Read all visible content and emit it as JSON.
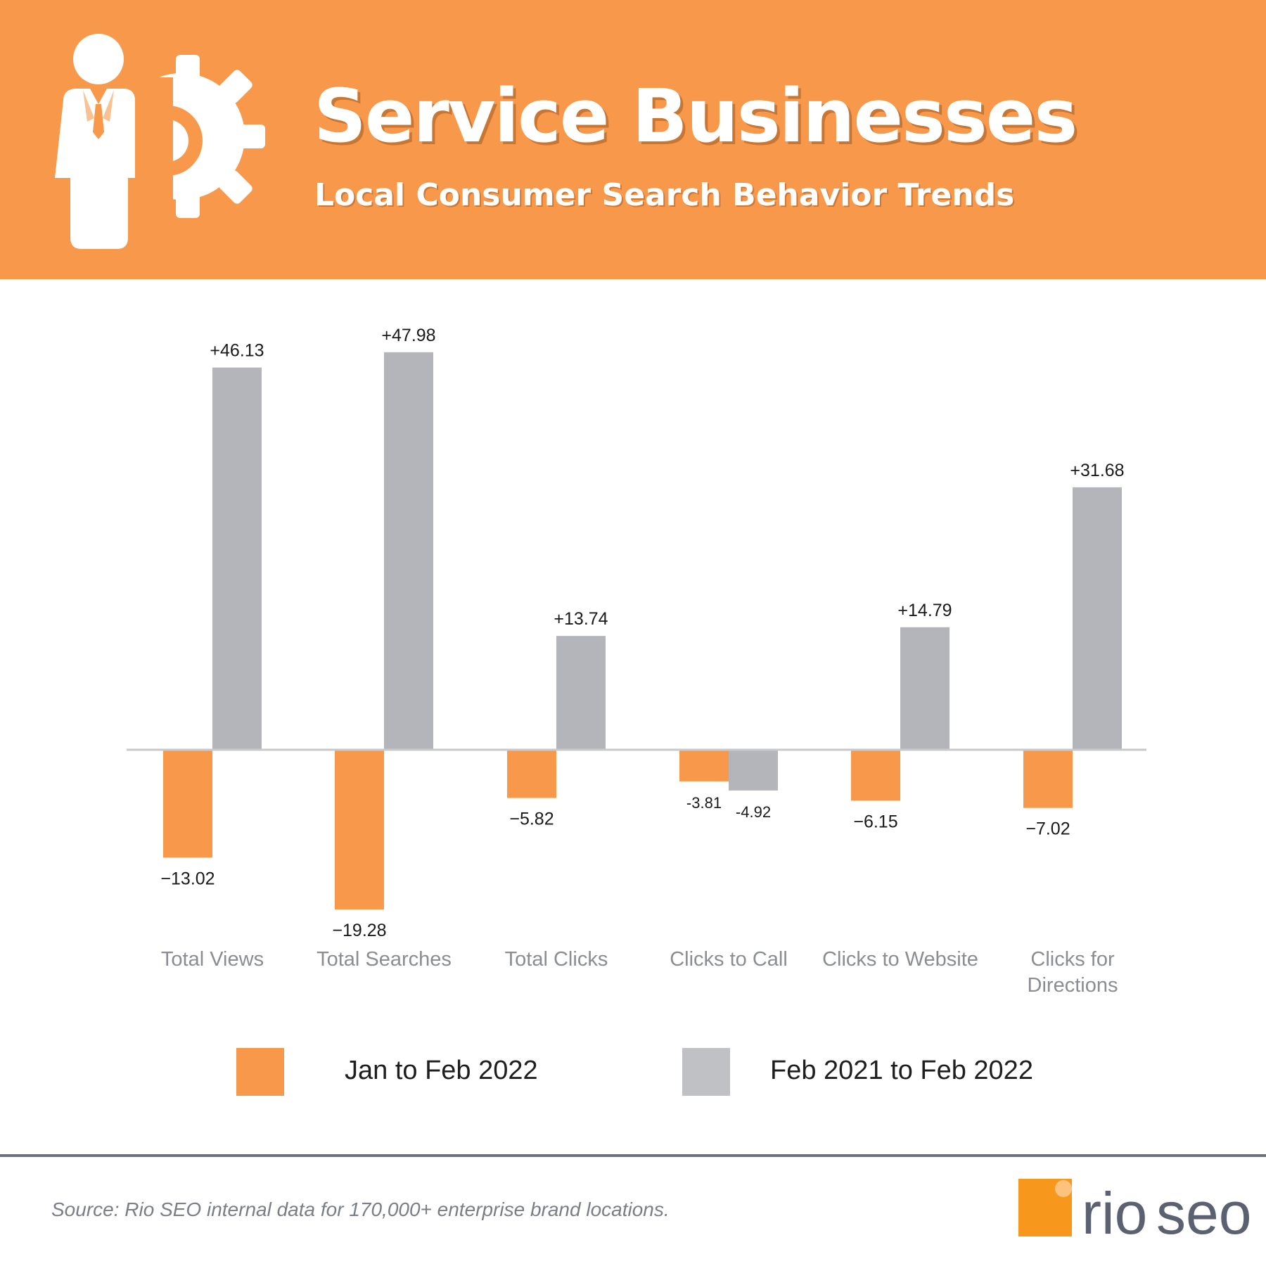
{
  "header": {
    "title": "Service Businesses",
    "subtitle": "Local Consumer Search Behavior Trends"
  },
  "icons": {
    "header_icon": "businessman-with-gear-icon",
    "logo_mark": "rio-seo-logo-icon"
  },
  "chart_data": {
    "type": "bar",
    "title": "Service Businesses",
    "subtitle": "Local Consumer Search Behavior Trends",
    "categories": [
      [
        "Total Views"
      ],
      [
        "Total Searches"
      ],
      [
        "Total Clicks"
      ],
      [
        "Clicks to Call"
      ],
      [
        "Clicks to Website"
      ],
      [
        "Clicks for",
        "Directions"
      ]
    ],
    "series": [
      {
        "name": "Jan to Feb 2022",
        "color": "#f7984b",
        "values": [
          -13.02,
          -19.28,
          -5.82,
          -3.81,
          -6.15,
          -7.02
        ],
        "labels": [
          "−13.02",
          "−19.28",
          "−5.82",
          "-3.81",
          "−6.15",
          "−7.02"
        ]
      },
      {
        "name": "Feb 2021 to Feb 2022",
        "color": "#b4b5ba",
        "values": [
          46.13,
          47.98,
          13.74,
          -4.92,
          14.79,
          31.68
        ],
        "labels": [
          "+46.13",
          "+47.98",
          "+13.74",
          "-4.92",
          "+14.79",
          "+31.68"
        ]
      }
    ],
    "ylim": [
      -20,
      50
    ],
    "xlabel": "",
    "ylabel": "",
    "grid": false,
    "legend_position": "bottom"
  },
  "legend": {
    "item1": "Jan to Feb 2022",
    "item2": "Feb 2021 to Feb 2022"
  },
  "footer": {
    "source": "Source: Rio SEO internal data for 170,000+ enterprise brand locations.",
    "logo_text_rio": "rio",
    "logo_text_seo": "seo"
  },
  "colors": {
    "brand_orange": "#f7984b",
    "bar_gray": "#b4b5ba",
    "legend_gray": "#c0c1c5",
    "axis_line": "#c8c9cc",
    "tick_text": "#8a8d93",
    "footer_rule": "#6b717d",
    "logo_text": "#5b6170"
  }
}
